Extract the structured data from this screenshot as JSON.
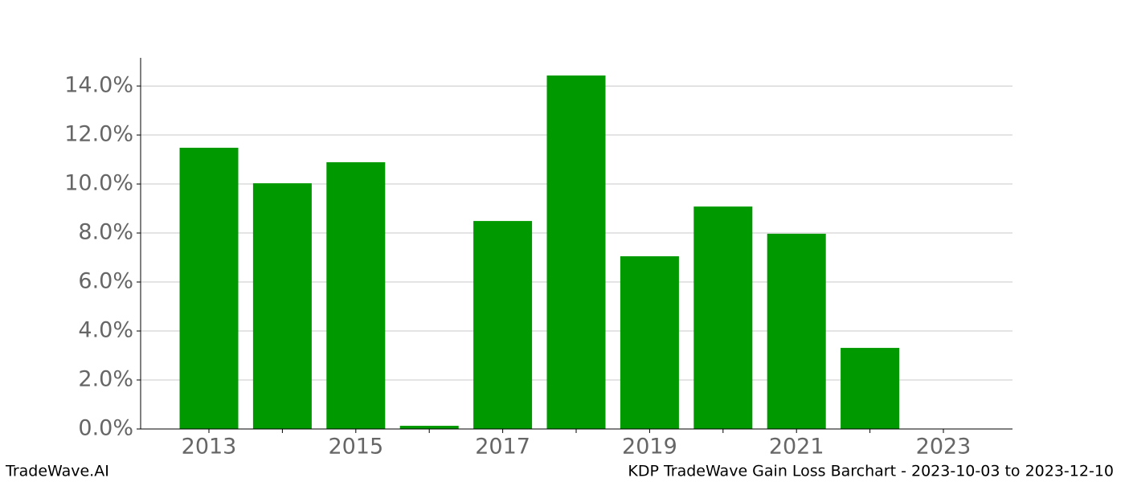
{
  "chart_data": {
    "type": "bar",
    "categories": [
      "2013",
      null,
      "2015",
      null,
      "2017",
      null,
      "2019",
      null,
      "2021",
      null,
      "2023"
    ],
    "values": [
      11.48,
      10.03,
      10.89,
      0.13,
      8.49,
      14.43,
      7.05,
      9.08,
      7.97,
      3.31,
      null
    ],
    "color": "#009900",
    "ylim": [
      0,
      15.15
    ],
    "yticks": [
      {
        "value": 0,
        "label": "0.0%"
      },
      {
        "value": 2,
        "label": "2.0%"
      },
      {
        "value": 4,
        "label": "4.0%"
      },
      {
        "value": 6,
        "label": "6.0%"
      },
      {
        "value": 8,
        "label": "8.0%"
      },
      {
        "value": 10,
        "label": "10.0%"
      },
      {
        "value": 12,
        "label": "12.0%"
      },
      {
        "value": 14,
        "label": "14.0%"
      }
    ],
    "grid": true,
    "footer_left": "TradeWave.AI",
    "footer_right": "KDP TradeWave Gain Loss Barchart - 2023-10-03 to 2023-12-10"
  }
}
